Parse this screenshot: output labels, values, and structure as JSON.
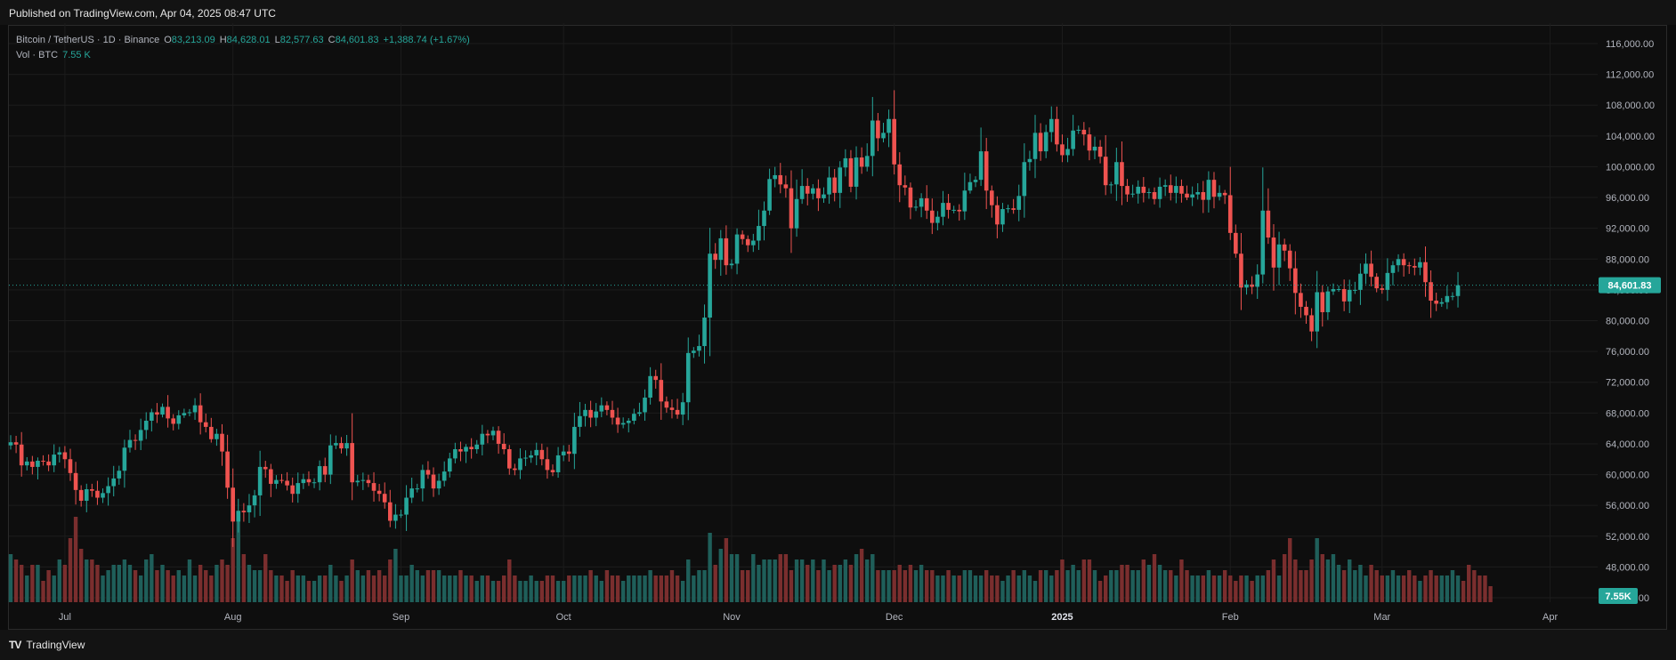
{
  "header": {
    "published": "Published on TradingView.com, Apr 04, 2025 08:47 UTC"
  },
  "legend": {
    "symbol": "Bitcoin / TetherUS · 1D · Binance",
    "o_label": "O",
    "o": "83,213.09",
    "h_label": "H",
    "h": "84,628.01",
    "l_label": "L",
    "l": "82,577.63",
    "c_label": "C",
    "c": "84,601.83",
    "change": "+1,388.74 (+1.67%)",
    "vol_label": "Vol · BTC",
    "vol": "7.55 K"
  },
  "footer": {
    "brand": "TradingView",
    "logo": "TV"
  },
  "colors": {
    "up": "#26a69a",
    "down": "#ef5350",
    "up_vol": "#1f5f5a",
    "down_vol": "#7a2e2e",
    "bg": "#0e0e0e",
    "grid": "#1c1c1c",
    "axis_text": "#b2b5be"
  },
  "chart_data": {
    "type": "candlestick",
    "symbol": "Bitcoin / TetherUS",
    "interval": "1D",
    "exchange": "Binance",
    "start_date": "2024-06-21",
    "y_ticks": [
      "116,000.00",
      "112,000.00",
      "108,000.00",
      "104,000.00",
      "100,000.00",
      "96,000.00",
      "92,000.00",
      "88,000.00",
      "84,000.00",
      "80,000.00",
      "76,000.00",
      "72,000.00",
      "68,000.00",
      "64,000.00",
      "60,000.00",
      "56,000.00",
      "52,000.00",
      "48,000.00",
      "44,000.00"
    ],
    "y_tick_values": [
      116000,
      112000,
      108000,
      104000,
      100000,
      96000,
      92000,
      88000,
      84000,
      80000,
      76000,
      72000,
      68000,
      64000,
      60000,
      56000,
      52000,
      48000,
      44000
    ],
    "ylim": [
      42500,
      117500
    ],
    "x_ticks": [
      {
        "label": "Jul",
        "date": "2024-07-01"
      },
      {
        "label": "Aug",
        "date": "2024-08-01"
      },
      {
        "label": "Sep",
        "date": "2024-09-01"
      },
      {
        "label": "Oct",
        "date": "2024-10-01"
      },
      {
        "label": "Nov",
        "date": "2024-11-01"
      },
      {
        "label": "Dec",
        "date": "2024-12-01"
      },
      {
        "label": "2025",
        "date": "2025-01-01"
      },
      {
        "label": "Feb",
        "date": "2025-02-01"
      },
      {
        "label": "Mar",
        "date": "2025-03-01"
      },
      {
        "label": "Apr",
        "date": "2025-04-01"
      }
    ],
    "last_price": 84601.83,
    "last_price_label": "84,601.83",
    "last_volume_label": "7.55K",
    "close_series": [
      64200,
      63900,
      61200,
      61700,
      61000,
      61800,
      61700,
      61200,
      62600,
      62900,
      62000,
      60200,
      58000,
      56600,
      58100,
      57900,
      57000,
      57600,
      58500,
      59500,
      60500,
      63500,
      64500,
      64400,
      65800,
      67000,
      68100,
      67800,
      68800,
      67300,
      66600,
      67700,
      68000,
      68100,
      69000,
      66800,
      66200,
      64600,
      65300,
      63000,
      58300,
      53900,
      55300,
      55100,
      56000,
      57300,
      61000,
      60700,
      58800,
      59300,
      59200,
      58600,
      57500,
      58900,
      59400,
      59000,
      59000,
      61100,
      60000,
      63800,
      64100,
      63400,
      64100,
      59000,
      59200,
      59300,
      58900,
      57900,
      57500,
      56400,
      54000,
      54800,
      54800,
      57000,
      58200,
      58200,
      60600,
      60000,
      58200,
      59200,
      60400,
      62100,
      63300,
      63000,
      63600,
      63300,
      63900,
      65300,
      65100,
      65700,
      64000,
      63300,
      60800,
      60600,
      62100,
      62200,
      62500,
      63200,
      62000,
      60600,
      60300,
      62500,
      63000,
      62700,
      66200,
      67600,
      68400,
      67400,
      68200,
      69000,
      68400,
      67400,
      66500,
      66700,
      67000,
      67900,
      68100,
      70000,
      72800,
      72300,
      69500,
      68700,
      68400,
      67800,
      69400,
      75800,
      76100,
      76700,
      80400,
      88700,
      87900,
      90700,
      87200,
      87400,
      91200,
      90600,
      89800,
      90400,
      92300,
      94300,
      98400,
      98900,
      97700,
      97200,
      92000,
      95800,
      97500,
      96500,
      97200,
      95900,
      96400,
      98600,
      96600,
      99900,
      101100,
      97400,
      101200,
      100000,
      101400,
      106000,
      103700,
      104400,
      106200,
      100300,
      97600,
      97300,
      94700,
      94800,
      95900,
      94300,
      92700,
      93500,
      95300,
      94400,
      94400,
      94200,
      96900,
      98000,
      98300,
      102000,
      96900,
      95000,
      92500,
      94500,
      94600,
      94400,
      96200,
      100600,
      101000,
      104400,
      102000,
      104500,
      106200,
      102900,
      101500,
      102300,
      104700,
      104800,
      104200,
      102100,
      102600,
      101300,
      97600,
      97700,
      100600,
      97500,
      96400,
      96500,
      97400,
      96600,
      96700,
      95800,
      97400,
      97600,
      96600,
      97500,
      96500,
      96000,
      96400,
      96700,
      95700,
      98300,
      96100,
      96600,
      96300,
      91400,
      88700,
      84300,
      84700,
      84400,
      86000,
      94300,
      90800,
      86900,
      89900,
      89100,
      86800,
      83600,
      81800,
      80700,
      78600,
      83700,
      81100,
      83800,
      84100,
      84100,
      82500,
      84000,
      84000,
      86100,
      87400,
      85700,
      84200,
      84000,
      86200,
      87200,
      88000,
      87200,
      87100,
      86900,
      87600,
      85000,
      82600,
      82200,
      82400,
      83200,
      83200,
      84600
    ],
    "volume_series": [
      9,
      8,
      7,
      5,
      7,
      7,
      4,
      6,
      5,
      8,
      7,
      12,
      16,
      10,
      8,
      8,
      7,
      5,
      6,
      7,
      7,
      8,
      7,
      6,
      5,
      8,
      9,
      6,
      7,
      6,
      5,
      6,
      5,
      8,
      5,
      7,
      6,
      5,
      7,
      8,
      7,
      12,
      16,
      9,
      7,
      6,
      6,
      9,
      6,
      5,
      5,
      4,
      6,
      5,
      5,
      4,
      4,
      5,
      5,
      7,
      5,
      4,
      5,
      8,
      6,
      5,
      6,
      5,
      6,
      5,
      8,
      10,
      5,
      5,
      7,
      6,
      5,
      6,
      6,
      6,
      5,
      5,
      5,
      6,
      5,
      5,
      4,
      5,
      5,
      4,
      4,
      5,
      8,
      5,
      4,
      4,
      5,
      4,
      4,
      5,
      5,
      4,
      4,
      5,
      5,
      5,
      5,
      6,
      5,
      4,
      6,
      5,
      5,
      4,
      5,
      5,
      5,
      5,
      6,
      5,
      5,
      5,
      6,
      5,
      4,
      8,
      5,
      6,
      6,
      13,
      7,
      10,
      12,
      9,
      9,
      6,
      6,
      9,
      7,
      8,
      8,
      8,
      9,
      9,
      6,
      8,
      8,
      7,
      8,
      6,
      8,
      6,
      7,
      7,
      8,
      7,
      9,
      10,
      8,
      9,
      6,
      6,
      6,
      6,
      7,
      6,
      7,
      6,
      7,
      6,
      6,
      5,
      5,
      6,
      5,
      5,
      6,
      6,
      5,
      5,
      6,
      5,
      5,
      4,
      5,
      6,
      5,
      6,
      5,
      4,
      6,
      6,
      5,
      6,
      8,
      6,
      7,
      6,
      8,
      8,
      6,
      4,
      5,
      6,
      6,
      7,
      7,
      6,
      6,
      8,
      7,
      9,
      7,
      6,
      6,
      5,
      8,
      6,
      5,
      5,
      5,
      6,
      5,
      5,
      6,
      5,
      4,
      5,
      5,
      4,
      5,
      5,
      6,
      8,
      5,
      9,
      12,
      8,
      6,
      6,
      8,
      12,
      9,
      8,
      9,
      7,
      6,
      8,
      6,
      7,
      5,
      7,
      6,
      5,
      5,
      6,
      5,
      5,
      6,
      5,
      4,
      5,
      6,
      5,
      5,
      5,
      6,
      5,
      4,
      7,
      6,
      5,
      5,
      3
    ]
  }
}
